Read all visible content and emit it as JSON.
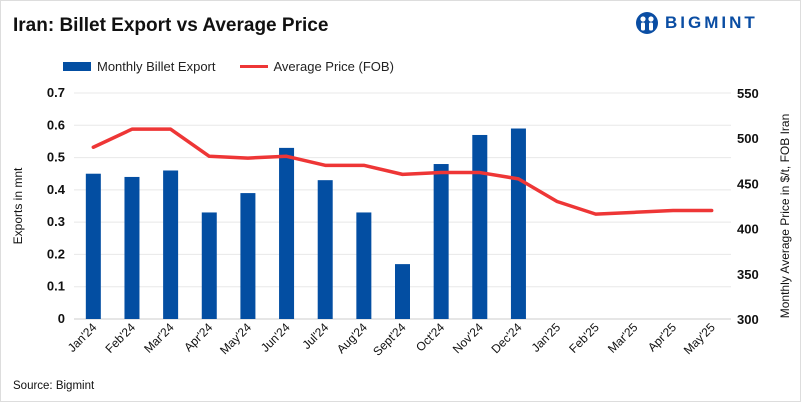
{
  "title": "Iran: Billet Export vs Average Price",
  "logo": {
    "text": "BIGMINT",
    "color": "#0a4da3"
  },
  "source": "Source: Bigmint",
  "chart_data": {
    "type": "bar+line",
    "title": "Iran: Billet Export vs Average Price",
    "categories": [
      "Jan'24",
      "Feb'24",
      "Mar'24",
      "Apr'24",
      "May'24",
      "Jun'24",
      "Jul'24",
      "Aug'24",
      "Sept'24",
      "Oct'24",
      "Nov'24",
      "Dec'24",
      "Jan'25",
      "Feb'25",
      "Mar'25",
      "Apr'25",
      "May'25"
    ],
    "series": [
      {
        "name": "Monthly Billet Export",
        "type": "bar",
        "axis": "left",
        "color": "#034ea2",
        "values": [
          0.45,
          0.44,
          0.46,
          0.33,
          0.39,
          0.53,
          0.43,
          0.33,
          0.17,
          0.48,
          0.57,
          0.59,
          null,
          null,
          null,
          null,
          null
        ]
      },
      {
        "name": "Average Price (FOB)",
        "type": "line",
        "axis": "right",
        "color": "#ee3636",
        "values": [
          490,
          510,
          510,
          480,
          478,
          480,
          470,
          470,
          460,
          462,
          462,
          455,
          430,
          416,
          418,
          420,
          420
        ]
      }
    ],
    "ylabel": "Exports in mnt",
    "ylim": [
      0,
      0.7
    ],
    "yticks": [
      "0",
      "0.1",
      "0.2",
      "0.3",
      "0.4",
      "0.5",
      "0.6",
      "0.7"
    ],
    "y2label": "Monthly Average Price in $/t, FOB Iran",
    "y2lim": [
      300,
      550
    ],
    "y2ticks": [
      "300",
      "350",
      "400",
      "450",
      "500",
      "550"
    ],
    "grid": true,
    "legend": "top-left"
  }
}
